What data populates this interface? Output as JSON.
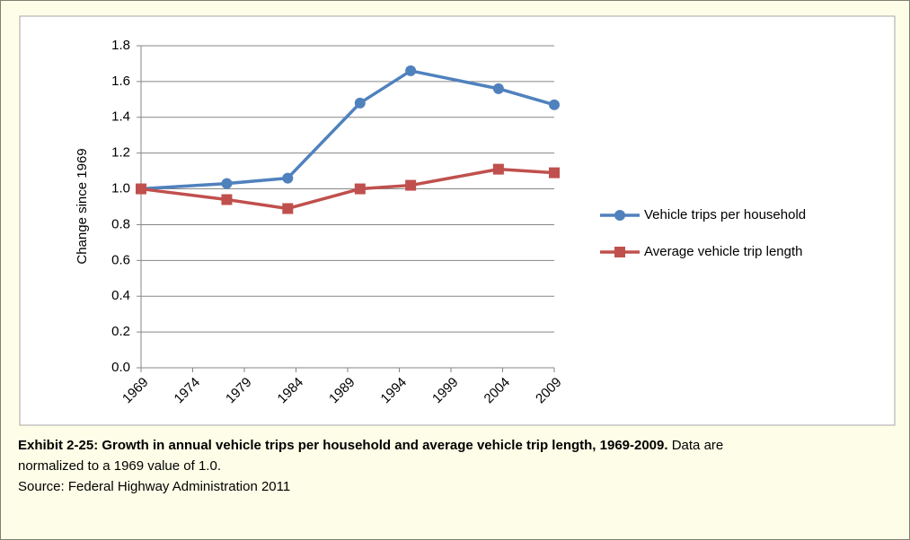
{
  "chart_data": {
    "type": "line",
    "y_label": "Change since 1969",
    "x": [
      1969,
      1977.3,
      1983.2,
      1990.2,
      1995.1,
      2003.6,
      2009
    ],
    "series": [
      {
        "name": "Vehicle trips per household",
        "color": "#4f81bd",
        "marker": "circle",
        "values": [
          1.0,
          1.03,
          1.06,
          1.48,
          1.66,
          1.56,
          1.47
        ]
      },
      {
        "name": "Average vehicle trip length",
        "color": "#c0504d",
        "marker": "square",
        "values": [
          1.0,
          0.94,
          0.89,
          1.0,
          1.02,
          1.11,
          1.09
        ]
      }
    ],
    "xlim": [
      1969,
      2009
    ],
    "xticks": [
      1969,
      1974,
      1979,
      1984,
      1989,
      1994,
      1999,
      2004,
      2009
    ],
    "ylim": [
      0,
      1.8
    ],
    "yticks": [
      {
        "value": 0,
        "label": "0.0"
      },
      0.2,
      0.4,
      0.6,
      0.8,
      {
        "value": 1,
        "label": "1.0"
      },
      1.2,
      1.4,
      1.6,
      1.8
    ],
    "grid": true,
    "legend": "right"
  },
  "caption": {
    "bold": "Exhibit 2-25: Growth in annual vehicle trips per household and average vehicle trip length, 1969-2009.",
    "text": " Data are normalized to a 1969 value of 1.0.",
    "source": "Source: Federal Highway Administration 2011"
  }
}
